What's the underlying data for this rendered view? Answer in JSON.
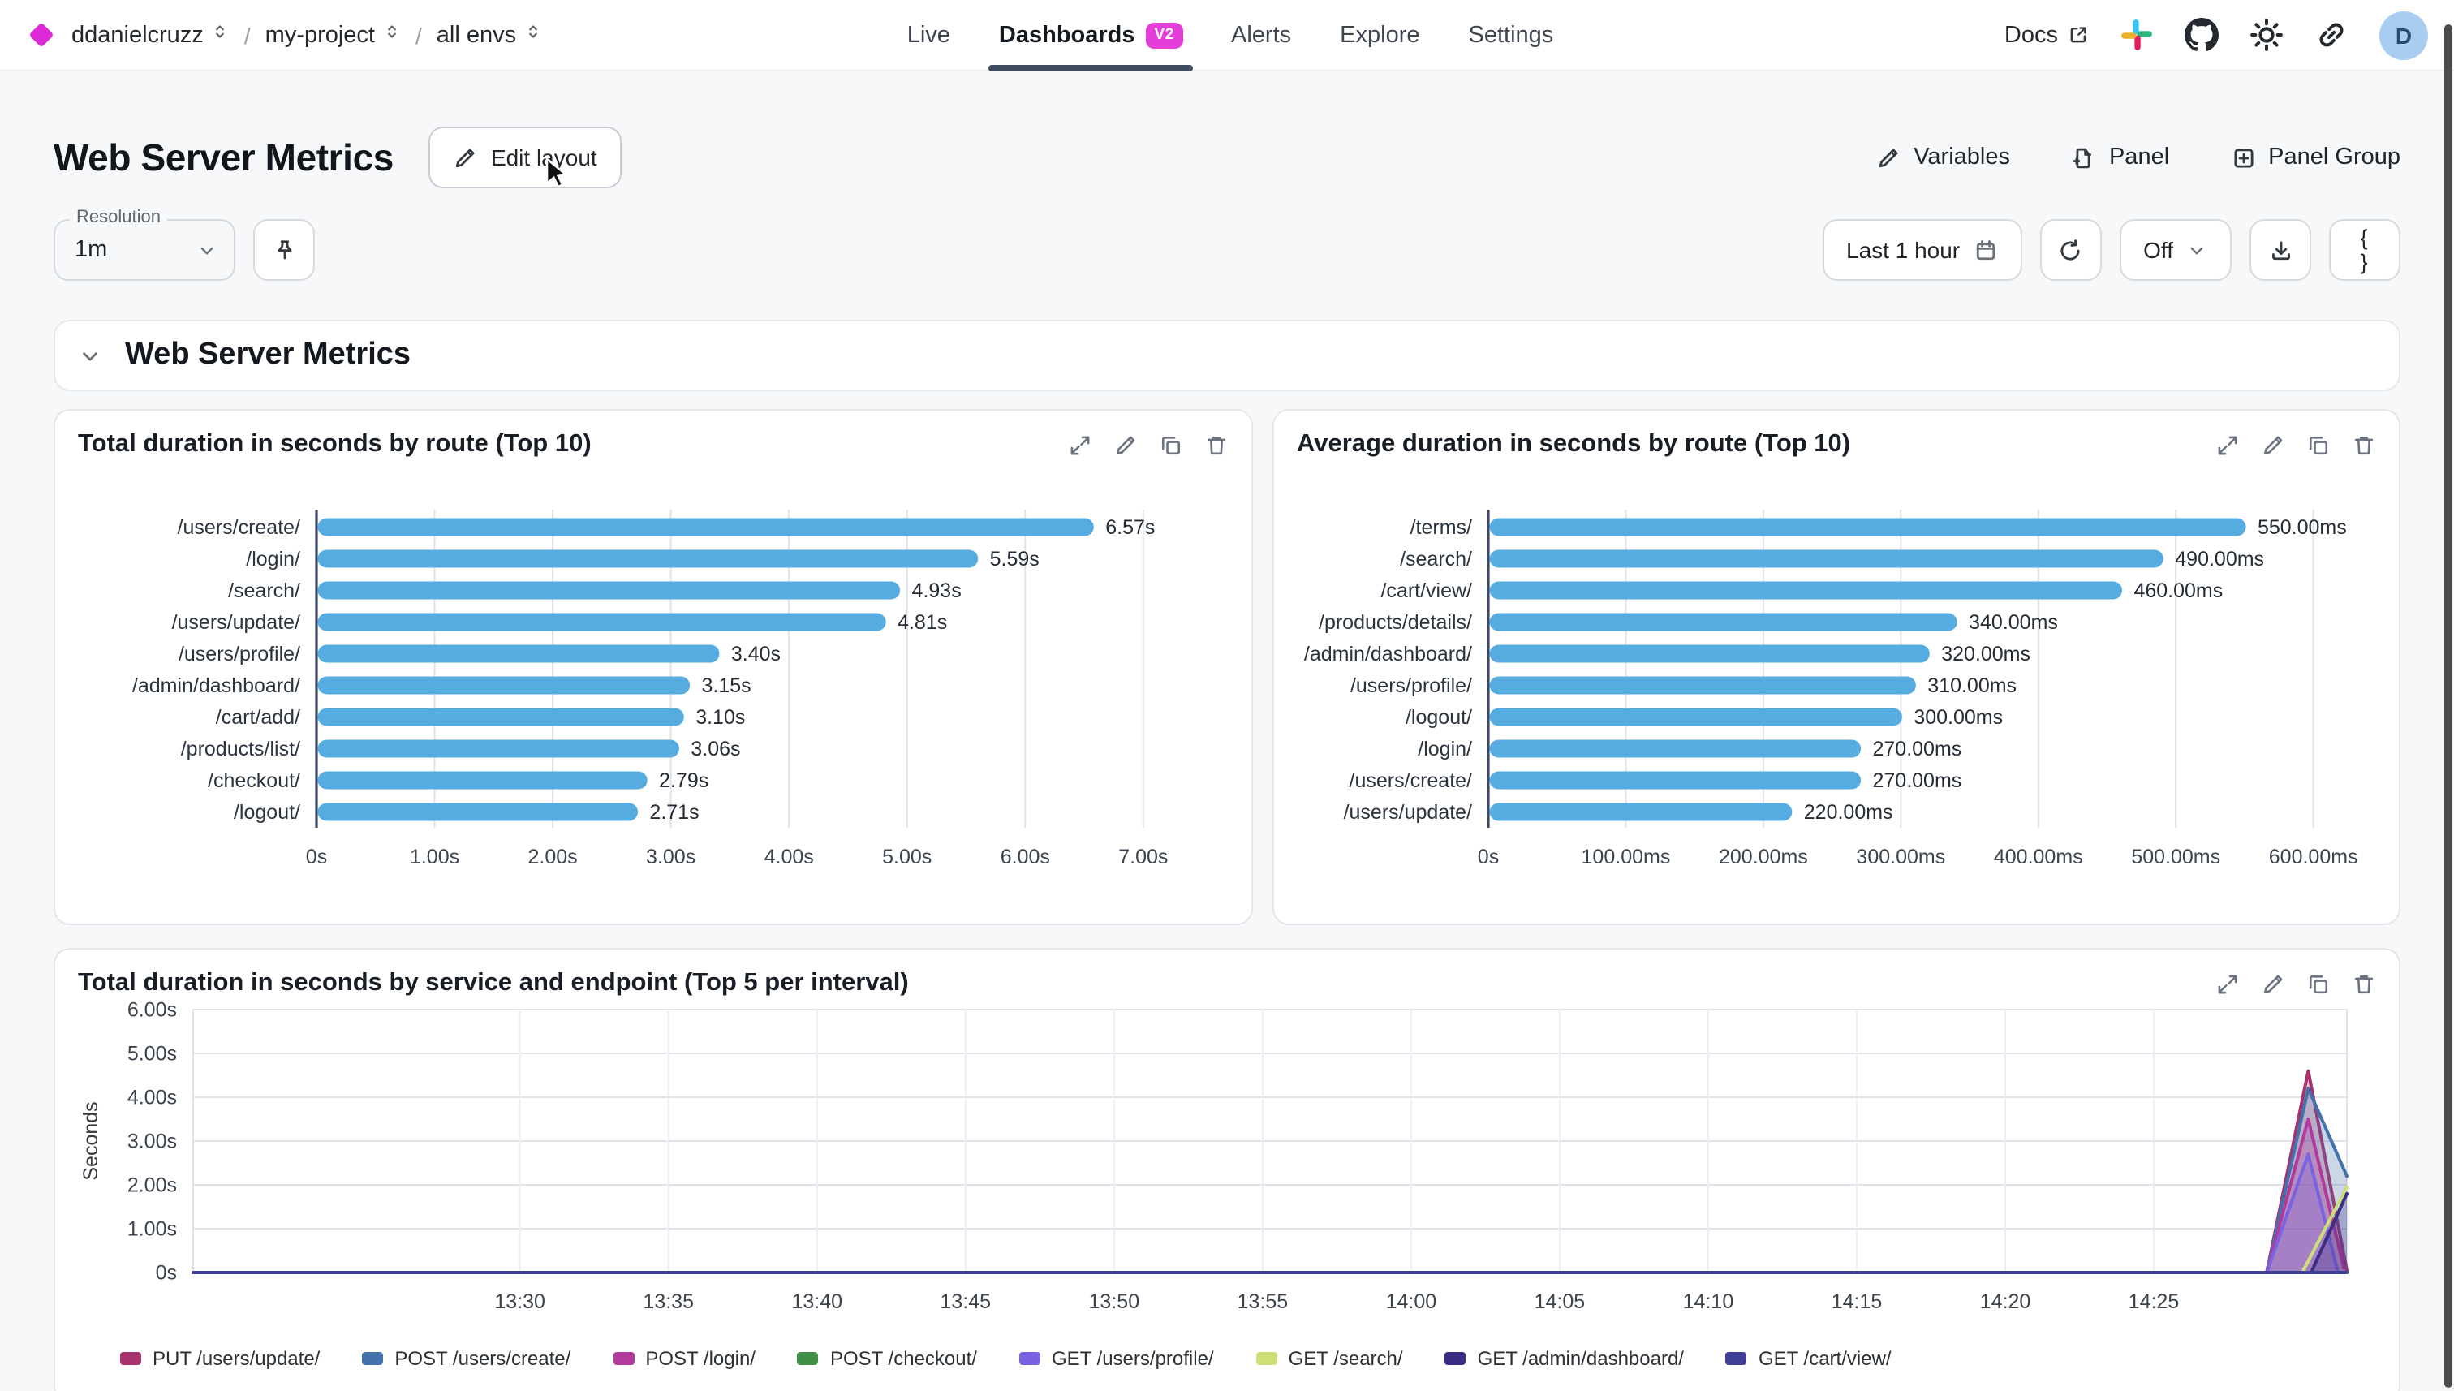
{
  "breadcrumb": {
    "org": "ddanielcruzz",
    "project": "my-project",
    "env": "all envs"
  },
  "nav": {
    "tabs": [
      {
        "label": "Live",
        "active": false
      },
      {
        "label": "Dashboards",
        "active": true,
        "badge": "V2"
      },
      {
        "label": "Alerts",
        "active": false
      },
      {
        "label": "Explore",
        "active": false
      },
      {
        "label": "Settings",
        "active": false
      }
    ],
    "docs_label": "Docs",
    "avatar_initial": "D"
  },
  "header": {
    "title": "Web Server Metrics",
    "edit_layout": "Edit layout",
    "actions": [
      {
        "name": "variables-button",
        "icon": "pencil",
        "label": "Variables"
      },
      {
        "name": "add-panel-button",
        "icon": "filePlus",
        "label": "Panel"
      },
      {
        "name": "add-panel-group-button",
        "icon": "squarePlus",
        "label": "Panel Group"
      }
    ]
  },
  "controls": {
    "resolution_label": "Resolution",
    "resolution_value": "1m",
    "time_range": "Last 1 hour",
    "auto_refresh": "Off",
    "json_label": "{ }"
  },
  "section": {
    "title": "Web Server Metrics"
  },
  "panel_actions": [
    "expand",
    "edit",
    "copy",
    "delete"
  ],
  "theme": {
    "accent_magenta": "#e33fd8",
    "bar_blue": "#56ace0",
    "tab_underline": "#3f4c5d",
    "avatar_bg": "#a9cdf0",
    "axis_line": "#3d4a63",
    "grid_line": "#dfe3ea"
  },
  "chart_data": [
    {
      "type": "bar",
      "orientation": "horizontal",
      "title": "Total duration in seconds by route (Top 10)",
      "categories": [
        "/users/create/",
        "/login/",
        "/search/",
        "/users/update/",
        "/users/profile/",
        "/admin/dashboard/",
        "/cart/add/",
        "/products/list/",
        "/checkout/",
        "/logout/"
      ],
      "values": [
        6.57,
        5.59,
        4.93,
        4.81,
        3.4,
        3.15,
        3.1,
        3.06,
        2.79,
        2.71
      ],
      "value_labels": [
        "6.57s",
        "5.59s",
        "4.93s",
        "4.81s",
        "3.40s",
        "3.15s",
        "3.10s",
        "3.06s",
        "2.79s",
        "2.71s"
      ],
      "x_ticks": [
        "0s",
        "1.00s",
        "2.00s",
        "3.00s",
        "4.00s",
        "5.00s",
        "6.00s",
        "7.00s"
      ],
      "x_tick_values": [
        0,
        1,
        2,
        3,
        4,
        5,
        6,
        7
      ],
      "xmax": 7.75,
      "bar_color": "#56ace0",
      "grid": true
    },
    {
      "type": "bar",
      "orientation": "horizontal",
      "title": "Average duration in seconds by route (Top 10)",
      "categories": [
        "/terms/",
        "/search/",
        "/cart/view/",
        "/products/details/",
        "/admin/dashboard/",
        "/users/profile/",
        "/logout/",
        "/login/",
        "/users/create/",
        "/users/update/"
      ],
      "values": [
        550,
        490,
        460,
        340,
        320,
        310,
        300,
        270,
        270,
        220
      ],
      "value_labels": [
        "550.00ms",
        "490.00ms",
        "460.00ms",
        "340.00ms",
        "320.00ms",
        "310.00ms",
        "300.00ms",
        "270.00ms",
        "270.00ms",
        "220.00ms"
      ],
      "x_ticks": [
        "0s",
        "100.00ms",
        "200.00ms",
        "300.00ms",
        "400.00ms",
        "500.00ms",
        "600.00ms"
      ],
      "x_tick_values": [
        0,
        100,
        200,
        300,
        400,
        500,
        600
      ],
      "xmax": 648,
      "bar_color": "#56ace0",
      "grid": true
    },
    {
      "type": "line",
      "title": "Total duration in seconds by service and endpoint (Top 5 per interval)",
      "ylabel": "Seconds",
      "y_ticks": [
        "0s",
        "1.00s",
        "2.00s",
        "3.00s",
        "4.00s",
        "5.00s",
        "6.00s"
      ],
      "y_tick_values": [
        0,
        1,
        2,
        3,
        4,
        5,
        6
      ],
      "ymax": 6,
      "x_ticks": [
        "13:30",
        "13:35",
        "13:40",
        "13:45",
        "13:50",
        "13:55",
        "14:00",
        "14:05",
        "14:10",
        "14:15",
        "14:20",
        "14:25"
      ],
      "x_tick_pos": [
        11,
        16,
        21,
        26,
        31,
        36,
        41,
        46,
        51,
        56,
        61,
        66
      ],
      "x_domain": [
        0,
        72.5
      ],
      "grid": true,
      "legend_position": "bottom",
      "series": [
        {
          "name": "PUT /users/update/",
          "color": "#a8326e",
          "fill": true,
          "points": [
            [
              0,
              0
            ],
            [
              69.8,
              0
            ],
            [
              71.2,
              4.6
            ],
            [
              72.5,
              0.05
            ]
          ]
        },
        {
          "name": "POST /users/create/",
          "color": "#4371aa",
          "fill": true,
          "points": [
            [
              0,
              0
            ],
            [
              69.8,
              0
            ],
            [
              71.2,
              4.2
            ],
            [
              72.5,
              2.2
            ]
          ]
        },
        {
          "name": "POST /login/",
          "color": "#b13a9c",
          "fill": true,
          "points": [
            [
              0,
              0
            ],
            [
              69.8,
              0
            ],
            [
              71.2,
              3.5
            ],
            [
              72.4,
              0.1
            ]
          ]
        },
        {
          "name": "POST /checkout/",
          "color": "#3f8f44",
          "fill": false,
          "points": [
            [
              0,
              0
            ],
            [
              72.5,
              0
            ]
          ]
        },
        {
          "name": "GET /users/profile/",
          "color": "#7a62e0",
          "fill": true,
          "points": [
            [
              0,
              0
            ],
            [
              69.8,
              0
            ],
            [
              71.2,
              2.7
            ],
            [
              72.2,
              0
            ]
          ]
        },
        {
          "name": "GET /search/",
          "color": "#cfdf78",
          "fill": false,
          "points": [
            [
              0,
              0
            ],
            [
              71.0,
              0
            ],
            [
              72.5,
              1.95
            ]
          ]
        },
        {
          "name": "GET /admin/dashboard/",
          "color": "#3b2d85",
          "fill": true,
          "points": [
            [
              0,
              0
            ],
            [
              71.3,
              0
            ],
            [
              72.5,
              1.8
            ]
          ]
        },
        {
          "name": "GET /cart/view/",
          "color": "#3f3f96",
          "fill": false,
          "points": [
            [
              0,
              0
            ],
            [
              72.5,
              0
            ]
          ]
        }
      ]
    }
  ]
}
